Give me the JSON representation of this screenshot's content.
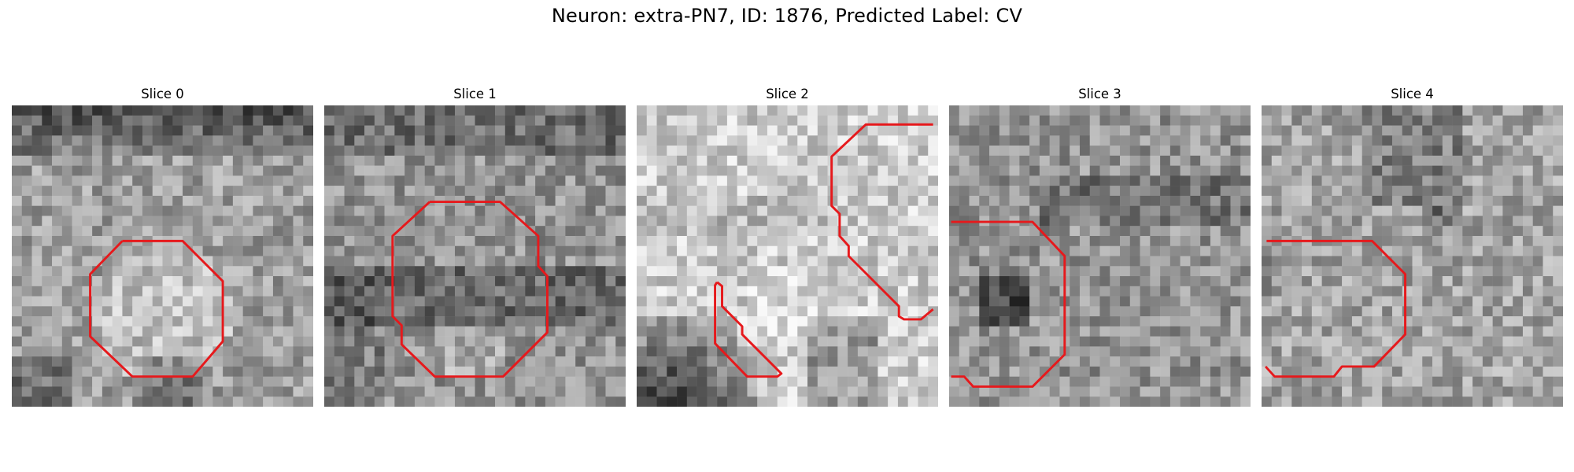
{
  "figure": {
    "title": "Neuron: extra-PN7, ID: 1876, Predicted Label: CV"
  },
  "panels": [
    {
      "title": "Slice 0",
      "seed": 11,
      "style": "bright-center-dark-top",
      "contour_color": "#e6191c"
    },
    {
      "title": "Slice 1",
      "seed": 23,
      "style": "dark-band",
      "contour_color": "#e6191c"
    },
    {
      "title": "Slice 2",
      "seed": 37,
      "style": "bright-dark-bottom-left",
      "contour_color": "#e6191c"
    },
    {
      "title": "Slice 3",
      "seed": 51,
      "style": "noisy-mid",
      "contour_color": "#e6191c"
    },
    {
      "title": "Slice 4",
      "seed": 67,
      "style": "noisy-light",
      "contour_color": "#e6191c"
    }
  ]
}
